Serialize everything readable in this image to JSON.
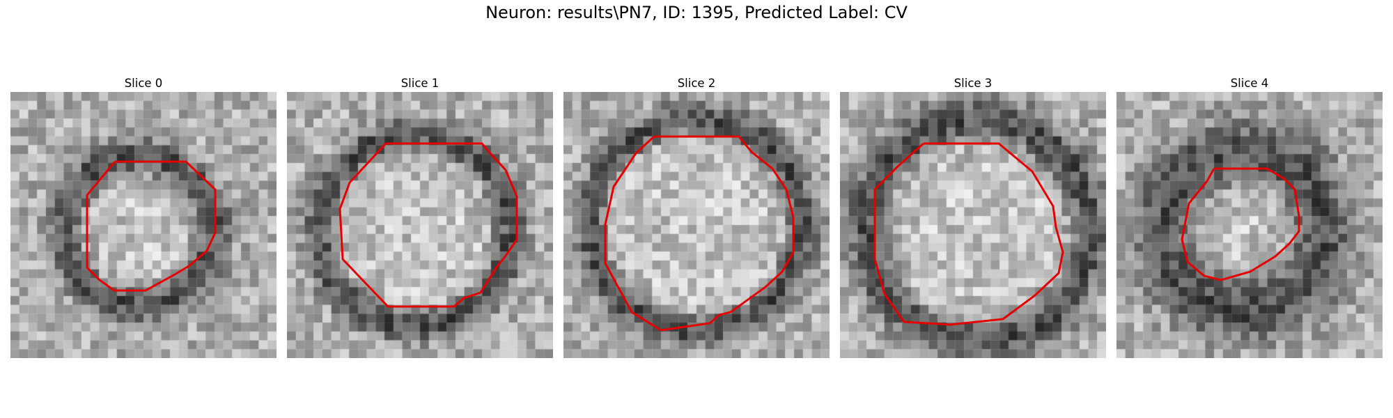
{
  "figure": {
    "title": "Neuron: results\\PN7, ID: 1395, Predicted Label: CV",
    "contour_color": "#e60000"
  },
  "slices": [
    {
      "title": "Slice 0"
    },
    {
      "title": "Slice 1"
    },
    {
      "title": "Slice 2"
    },
    {
      "title": "Slice 3"
    },
    {
      "title": "Slice 4"
    }
  ]
}
